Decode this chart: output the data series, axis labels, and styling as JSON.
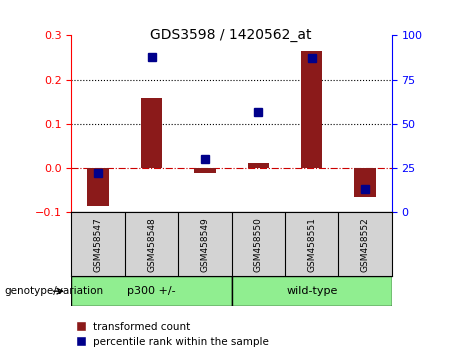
{
  "title": "GDS3598 / 1420562_at",
  "samples": [
    "GSM458547",
    "GSM458548",
    "GSM458549",
    "GSM458550",
    "GSM458551",
    "GSM458552"
  ],
  "transformed_count": [
    -0.085,
    0.158,
    -0.012,
    0.012,
    0.265,
    -0.065
  ],
  "percentile_rank": [
    22,
    88,
    30,
    57,
    87,
    13
  ],
  "group1_label": "p300 +/-",
  "group1_indices": [
    0,
    1,
    2
  ],
  "group2_label": "wild-type",
  "group2_indices": [
    3,
    4,
    5
  ],
  "group_color": "#90EE90",
  "bar_color": "#8B1A1A",
  "dot_color": "#00008B",
  "ylim_left": [
    -0.1,
    0.3
  ],
  "ylim_right": [
    0,
    100
  ],
  "yticks_left": [
    -0.1,
    0.0,
    0.1,
    0.2,
    0.3
  ],
  "yticks_right": [
    0,
    25,
    50,
    75,
    100
  ],
  "dotted_lines": [
    0.1,
    0.2
  ],
  "group_label": "genotype/variation",
  "legend_items": [
    "transformed count",
    "percentile rank within the sample"
  ]
}
